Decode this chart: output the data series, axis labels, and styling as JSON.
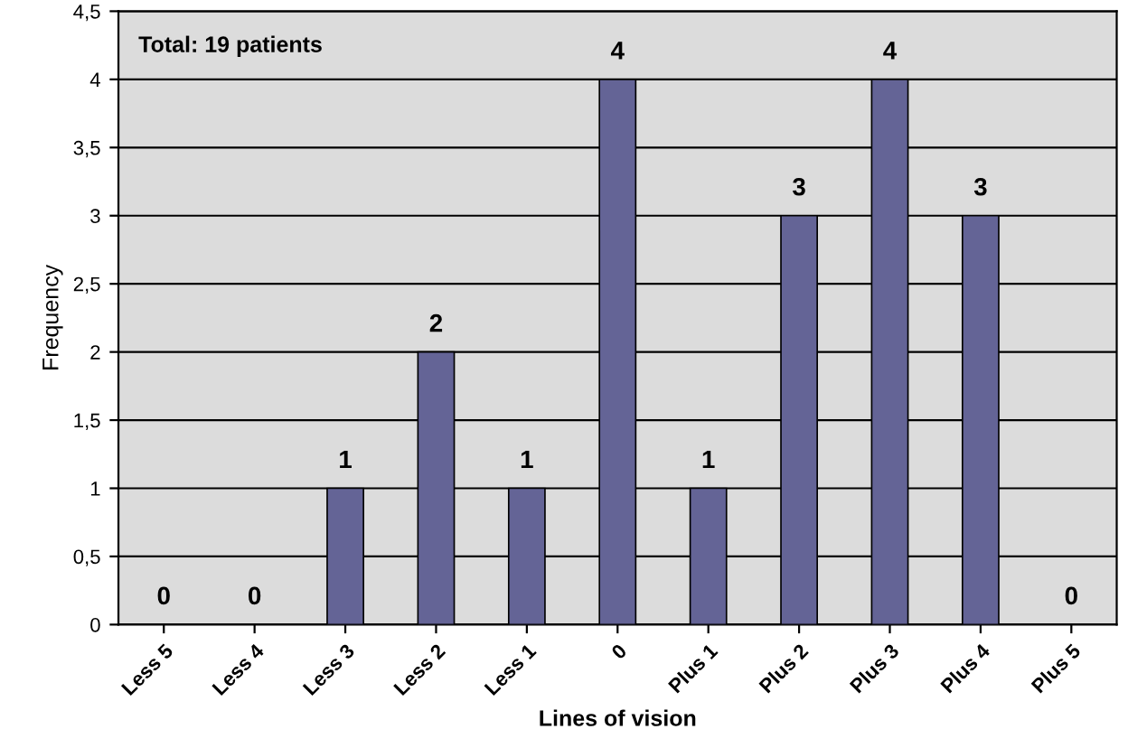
{
  "chart_data": {
    "type": "bar",
    "categories": [
      "Less 5",
      "Less 4",
      "Less 3",
      "Less 2",
      "Less 1",
      "0",
      "Plus 1",
      "Plus 2",
      "Plus 3",
      "Plus 4",
      "Plus 5"
    ],
    "values": [
      0,
      0,
      1,
      2,
      1,
      4,
      1,
      3,
      4,
      3,
      0
    ],
    "color": "#646496",
    "xlabel": "Lines of vision",
    "ylabel": "Frequency",
    "annotations": [
      "Total: 19 patients"
    ],
    "ylim": [
      0,
      4.5
    ],
    "yticks": [
      0,
      {
        "value": 0.5,
        "label": "0,5"
      },
      1,
      {
        "value": 1.5,
        "label": "1,5"
      },
      2,
      {
        "value": 2.5,
        "label": "2,5"
      },
      3,
      {
        "value": 3.5,
        "label": "3,5"
      },
      4,
      {
        "value": 4.5,
        "label": "4,5"
      }
    ],
    "grid": "y",
    "data_labels": true
  }
}
